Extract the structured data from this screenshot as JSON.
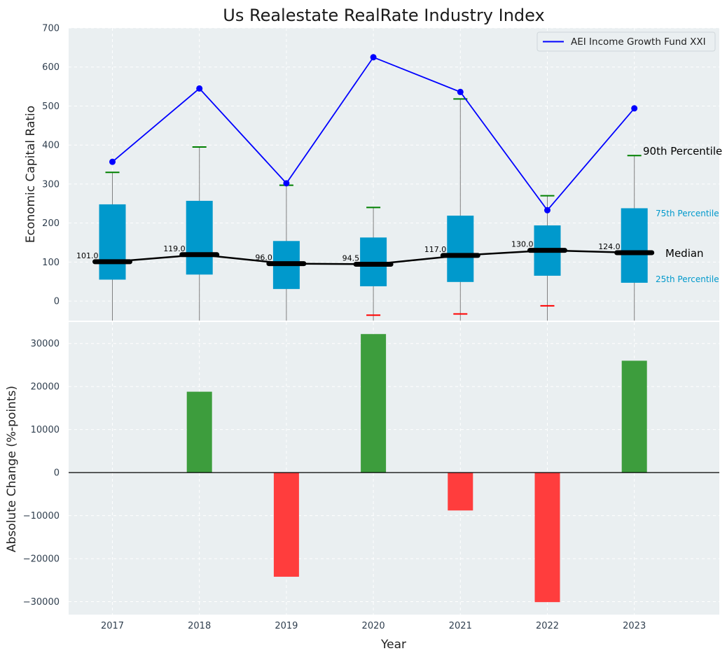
{
  "chart_data": [
    {
      "type": "box",
      "title": "Us Realestate RealRate Industry Index",
      "ylabel": "Economic Capital Ratio",
      "ylim": [
        -50,
        700
      ],
      "yticks": [
        0,
        100,
        200,
        300,
        400,
        500,
        600,
        700
      ],
      "categories": [
        "2017",
        "2018",
        "2019",
        "2020",
        "2021",
        "2022",
        "2023"
      ],
      "boxes": [
        {
          "year": "2017",
          "q1": 55,
          "median": 101.0,
          "median_label": "101.0",
          "q3": 248,
          "p90": 330,
          "p10": null
        },
        {
          "year": "2018",
          "q1": 68,
          "median": 119.0,
          "median_label": "119.0",
          "q3": 257,
          "p90": 395,
          "p10": null
        },
        {
          "year": "2019",
          "q1": 31,
          "median": 96.0,
          "median_label": "96.0",
          "q3": 154,
          "p90": 297,
          "p10": null
        },
        {
          "year": "2020",
          "q1": 38,
          "median": 94.5,
          "median_label": "94.5",
          "q3": 163,
          "p90": 240,
          "p10": -36
        },
        {
          "year": "2021",
          "q1": 49,
          "median": 117.0,
          "median_label": "117.0",
          "q3": 219,
          "p90": 518,
          "p10": -33
        },
        {
          "year": "2022",
          "q1": 65,
          "median": 130.0,
          "median_label": "130.0",
          "q3": 194,
          "p90": 270,
          "p10": -12
        },
        {
          "year": "2023",
          "q1": 47,
          "median": 124.0,
          "median_label": "124.0",
          "q3": 238,
          "p90": 373,
          "p10": null
        }
      ],
      "fund_series": {
        "name": "AEI Income Growth Fund XXI",
        "values": [
          357,
          545,
          302,
          625,
          536,
          233,
          494
        ]
      },
      "annotations": {
        "p90": "90th Percentile",
        "q3": "75th Percentile",
        "median": "Median",
        "q1": "25th Percentile"
      },
      "legend_position": "top-right"
    },
    {
      "type": "bar",
      "xlabel": "Year",
      "ylabel": "Absolute Change (%-points)",
      "ylim": [
        -33000,
        35000
      ],
      "yticks": [
        -30000,
        -20000,
        -10000,
        0,
        10000,
        20000,
        30000
      ],
      "ytick_labels": [
        "−30000",
        "−20000",
        "−10000",
        "0",
        "10000",
        "20000",
        "30000"
      ],
      "categories": [
        "2017",
        "2018",
        "2019",
        "2020",
        "2021",
        "2022",
        "2023"
      ],
      "values": [
        0,
        18800,
        -24200,
        32200,
        -8800,
        -30100,
        26000
      ]
    }
  ],
  "colors": {
    "background": "#eaeff1",
    "box": "#0099cc",
    "fund_line": "#0000ff",
    "median": "#000000",
    "p90_cap": "#008000",
    "p10_cap": "#ff0000",
    "whisker": "#808080",
    "positive": "#3d9d3d",
    "negative": "#ff3d3d",
    "annot_blue": "#0099cc"
  }
}
